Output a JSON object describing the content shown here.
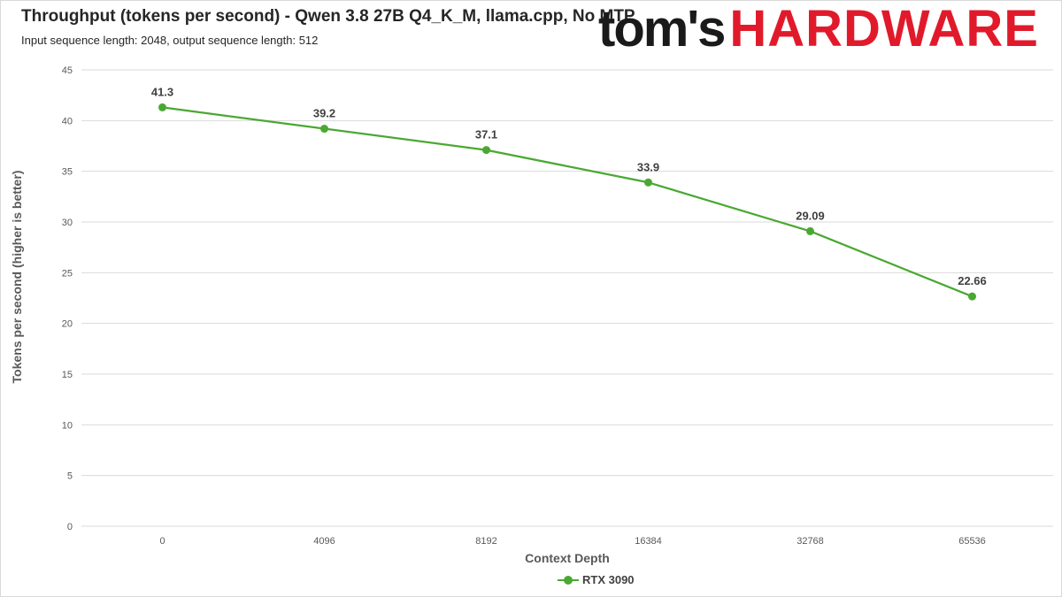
{
  "header": {
    "title": "Throughput (tokens per second) - Qwen 3.8 27B Q4_K_M, llama.cpp, No MTP",
    "subtitle": "Input sequence length: 2048, output sequence length: 512"
  },
  "logo": {
    "part1": "tom's",
    "part2": "HARDWARE"
  },
  "colors": {
    "series": "#4aa832",
    "grid": "#d9d9d9",
    "text": "#595959",
    "logo_red": "#e11a2b"
  },
  "chart_data": {
    "type": "line",
    "xlabel": "Context Depth",
    "ylabel": "Tokens per second (higher is better)",
    "categories": [
      "0",
      "4096",
      "8192",
      "16384",
      "32768",
      "65536"
    ],
    "ylim": [
      0,
      45
    ],
    "yticks": [
      0,
      5,
      10,
      15,
      20,
      25,
      30,
      35,
      40,
      45
    ],
    "grid": true,
    "legend_position": "bottom",
    "series": [
      {
        "name": "RTX 3090",
        "values": [
          41.3,
          39.2,
          37.1,
          33.9,
          29.09,
          22.66
        ],
        "labels": [
          "41.3",
          "39.2",
          "37.1",
          "33.9",
          "29.09",
          "22.66"
        ]
      }
    ]
  }
}
